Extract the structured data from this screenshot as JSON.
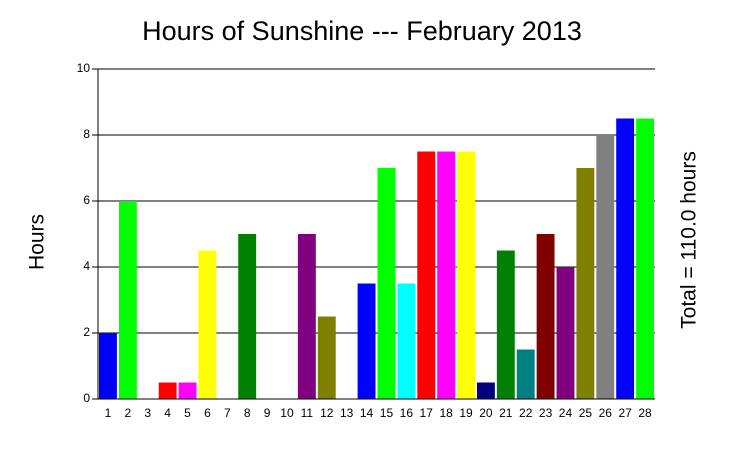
{
  "chart_data": {
    "type": "bar",
    "title": "Hours of Sunshine --- February 2013",
    "y_label": "Hours",
    "annotation": "Total = 110.0 hours",
    "categories": [
      "1",
      "2",
      "3",
      "4",
      "5",
      "6",
      "7",
      "8",
      "9",
      "10",
      "11",
      "12",
      "13",
      "14",
      "15",
      "16",
      "17",
      "18",
      "19",
      "20",
      "21",
      "22",
      "23",
      "24",
      "25",
      "26",
      "27",
      "28"
    ],
    "values": [
      2,
      6,
      0,
      0.5,
      0.5,
      4.5,
      0,
      5,
      0,
      0,
      5,
      2.5,
      0,
      3.5,
      7,
      3.5,
      7.5,
      7.5,
      7.5,
      0.5,
      4.5,
      1.5,
      5,
      4,
      7,
      8,
      8.5,
      8.5
    ],
    "colors": [
      "#0000ff",
      "#00ff00",
      "#00ffff",
      "#ff0000",
      "#ff00ff",
      "#ffff00",
      "#000080",
      "#008000",
      "#008080",
      "#800000",
      "#800080",
      "#808000",
      "#808080",
      "#0000ff",
      "#00ff00",
      "#00ffff",
      "#ff0000",
      "#ff00ff",
      "#ffff00",
      "#000080",
      "#008000",
      "#008080",
      "#800000",
      "#800080",
      "#808000",
      "#808080",
      "#0000ff",
      "#00ff00"
    ],
    "ylim": [
      0,
      10
    ],
    "yticks": [
      0,
      2,
      4,
      6,
      8,
      10
    ],
    "grid": true
  }
}
